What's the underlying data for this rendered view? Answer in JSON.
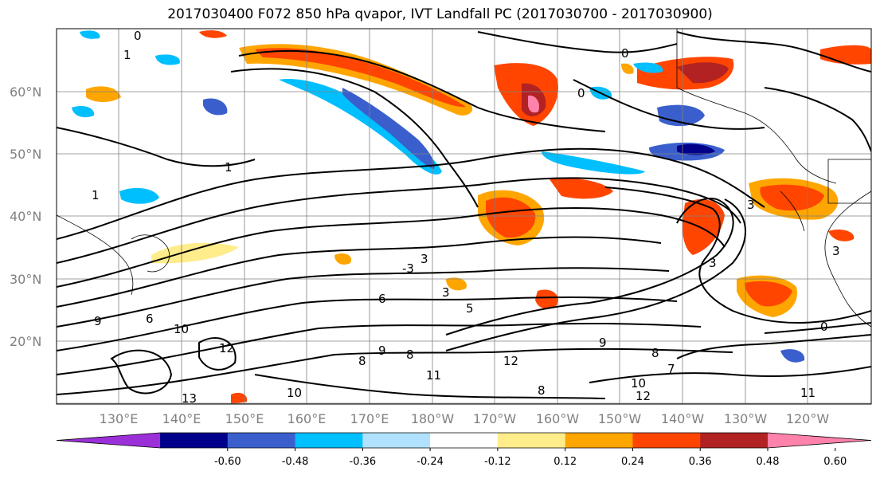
{
  "title": "2017030400 F072 850 hPa qvapor, IVT Landfall PC (2017030700 - 2017030900)",
  "map": {
    "lat_labels": [
      "60°N",
      "50°N",
      "40°N",
      "30°N",
      "20°N"
    ],
    "lon_labels": [
      "130°E",
      "140°E",
      "150°E",
      "160°E",
      "170°E",
      "180°W",
      "170°W",
      "160°W",
      "150°W",
      "140°W",
      "130°W",
      "120°W"
    ],
    "contour_labels": [
      "0",
      "1",
      "0",
      "0",
      "1",
      "1",
      "-3",
      "3",
      "3",
      "3",
      "3",
      "6",
      "5",
      "9",
      "6",
      "10",
      "12",
      "8",
      "9",
      "8",
      "11",
      "10",
      "13",
      "12",
      "9",
      "8",
      "7",
      "8",
      "10",
      "12",
      "11",
      "0",
      "3"
    ]
  },
  "colorbar": {
    "colors": [
      "#9b30d9",
      "#00008b",
      "#3a5fcd",
      "#00bfff",
      "#b0e2ff",
      "#ffffff",
      "#ffec8b",
      "#ffa500",
      "#ff4500",
      "#b22222",
      "#ff82ab"
    ],
    "tick_labels": [
      "-0.60",
      "-0.48",
      "-0.36",
      "-0.24",
      "-0.12",
      "0.12",
      "0.24",
      "0.36",
      "0.48",
      "0.60"
    ]
  },
  "chart_data": {
    "type": "heatmap",
    "title": "2017030400 F072 850 hPa qvapor, IVT Landfall PC (2017030700 - 2017030900)",
    "colorbar_levels": [
      -0.6,
      -0.48,
      -0.36,
      -0.24,
      -0.12,
      0.12,
      0.24,
      0.36,
      0.48,
      0.6
    ]
  }
}
